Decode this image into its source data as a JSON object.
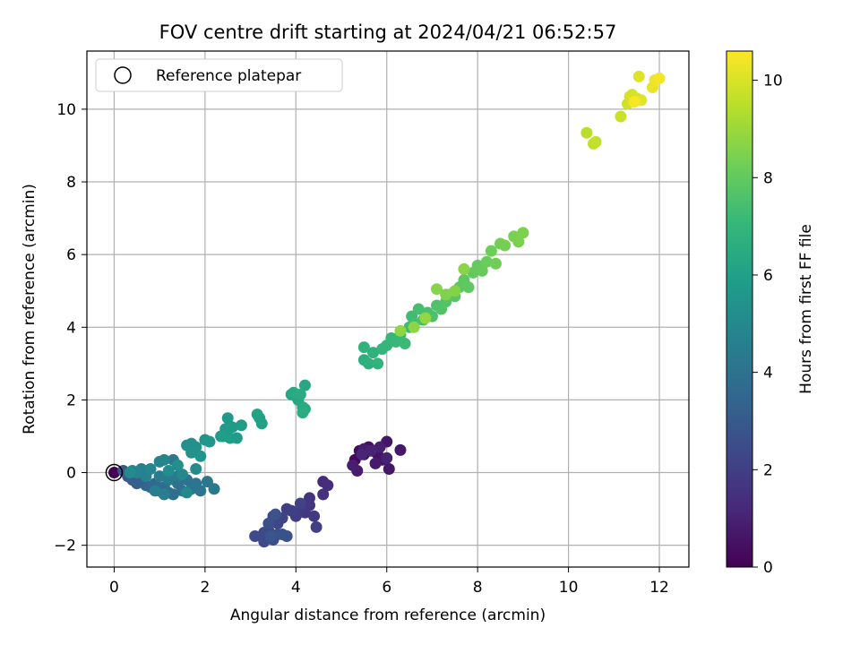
{
  "chart_data": {
    "type": "scatter",
    "title": "FOV centre drift starting at 2024/04/21 06:52:57",
    "xlabel": "Angular distance from reference (arcmin)",
    "ylabel": "Rotation from reference (arcmin)",
    "xlim": [
      -0.6,
      12.65
    ],
    "ylim": [
      -2.6,
      11.6
    ],
    "xticks": [
      0,
      2,
      4,
      6,
      8,
      10,
      12
    ],
    "yticks": [
      -2,
      0,
      2,
      4,
      6,
      8,
      10
    ],
    "grid": true,
    "legend": {
      "position": "top-left",
      "entries": [
        "Reference platepar"
      ]
    },
    "reference_point": {
      "x": 0,
      "y": 0,
      "marker": "open-circle"
    },
    "colorbar": {
      "label": "Hours from first FF file",
      "range": [
        0,
        10.6
      ],
      "ticks": [
        0,
        2,
        4,
        6,
        8,
        10
      ],
      "colormap": "viridis"
    },
    "points": [
      {
        "x": 0.0,
        "y": 0.0,
        "c": 0.0
      },
      {
        "x": 5.3,
        "y": 0.35,
        "c": 0.2
      },
      {
        "x": 5.4,
        "y": 0.6,
        "c": 0.3
      },
      {
        "x": 5.5,
        "y": 0.5,
        "c": 0.35
      },
      {
        "x": 5.6,
        "y": 0.7,
        "c": 0.4
      },
      {
        "x": 5.7,
        "y": 0.6,
        "c": 0.45
      },
      {
        "x": 5.8,
        "y": 0.5,
        "c": 0.5
      },
      {
        "x": 5.9,
        "y": 0.35,
        "c": 0.55
      },
      {
        "x": 6.0,
        "y": 0.85,
        "c": 0.6
      },
      {
        "x": 6.05,
        "y": 0.1,
        "c": 0.65
      },
      {
        "x": 6.3,
        "y": 0.62,
        "c": 0.7
      },
      {
        "x": 5.35,
        "y": 0.05,
        "c": 0.75
      },
      {
        "x": 5.75,
        "y": 0.25,
        "c": 0.8
      },
      {
        "x": 5.5,
        "y": 0.65,
        "c": 0.85
      },
      {
        "x": 5.25,
        "y": 0.2,
        "c": 0.9
      },
      {
        "x": 5.85,
        "y": 0.7,
        "c": 0.95
      },
      {
        "x": 6.0,
        "y": 0.4,
        "c": 1.0
      },
      {
        "x": 5.65,
        "y": 0.6,
        "c": 1.05
      },
      {
        "x": 5.45,
        "y": 0.5,
        "c": 1.1
      },
      {
        "x": 4.6,
        "y": -0.25,
        "c": 1.3
      },
      {
        "x": 4.7,
        "y": -0.35,
        "c": 1.4
      },
      {
        "x": 4.6,
        "y": -0.6,
        "c": 1.5
      },
      {
        "x": 4.3,
        "y": -0.7,
        "c": 1.6
      },
      {
        "x": 4.3,
        "y": -0.9,
        "c": 1.7
      },
      {
        "x": 4.2,
        "y": -1.1,
        "c": 1.75
      },
      {
        "x": 4.4,
        "y": -1.2,
        "c": 1.8
      },
      {
        "x": 4.1,
        "y": -1.0,
        "c": 1.85
      },
      {
        "x": 4.0,
        "y": -1.2,
        "c": 1.9
      },
      {
        "x": 3.8,
        "y": -1.0,
        "c": 1.95
      },
      {
        "x": 3.9,
        "y": -1.05,
        "c": 2.0
      },
      {
        "x": 4.45,
        "y": -1.5,
        "c": 2.05
      },
      {
        "x": 4.1,
        "y": -0.85,
        "c": 2.1
      },
      {
        "x": 3.7,
        "y": -1.25,
        "c": 2.15
      },
      {
        "x": 3.6,
        "y": -1.4,
        "c": 2.2
      },
      {
        "x": 3.5,
        "y": -1.2,
        "c": 2.25
      },
      {
        "x": 3.4,
        "y": -1.6,
        "c": 2.3
      },
      {
        "x": 3.3,
        "y": -1.65,
        "c": 2.35
      },
      {
        "x": 3.1,
        "y": -1.75,
        "c": 2.4
      },
      {
        "x": 3.3,
        "y": -1.9,
        "c": 2.45
      },
      {
        "x": 3.5,
        "y": -1.85,
        "c": 2.5
      },
      {
        "x": 3.6,
        "y": -1.7,
        "c": 2.55
      },
      {
        "x": 3.4,
        "y": -1.4,
        "c": 2.6
      },
      {
        "x": 3.7,
        "y": -1.7,
        "c": 2.65
      },
      {
        "x": 3.8,
        "y": -1.75,
        "c": 2.7
      },
      {
        "x": 3.55,
        "y": -1.15,
        "c": 2.75
      },
      {
        "x": 3.45,
        "y": -1.75,
        "c": 2.8
      },
      {
        "x": 0.2,
        "y": 0.05,
        "c": 2.9
      },
      {
        "x": 0.3,
        "y": -0.1,
        "c": 3.0
      },
      {
        "x": 0.4,
        "y": -0.2,
        "c": 3.1
      },
      {
        "x": 0.5,
        "y": -0.3,
        "c": 3.2
      },
      {
        "x": 0.6,
        "y": -0.2,
        "c": 3.3
      },
      {
        "x": 0.7,
        "y": -0.35,
        "c": 3.4
      },
      {
        "x": 0.8,
        "y": -0.4,
        "c": 3.5
      },
      {
        "x": 0.9,
        "y": -0.3,
        "c": 3.6
      },
      {
        "x": 1.0,
        "y": -0.5,
        "c": 3.7
      },
      {
        "x": 1.1,
        "y": -0.4,
        "c": 3.75
      },
      {
        "x": 1.2,
        "y": -0.55,
        "c": 3.8
      },
      {
        "x": 1.3,
        "y": -0.6,
        "c": 3.85
      },
      {
        "x": 1.4,
        "y": -0.3,
        "c": 3.9
      },
      {
        "x": 1.5,
        "y": -0.5,
        "c": 3.95
      },
      {
        "x": 1.6,
        "y": -0.2,
        "c": 4.0
      },
      {
        "x": 1.7,
        "y": -0.45,
        "c": 4.05
      },
      {
        "x": 1.8,
        "y": -0.3,
        "c": 4.1
      },
      {
        "x": 1.9,
        "y": -0.5,
        "c": 4.15
      },
      {
        "x": 2.05,
        "y": -0.25,
        "c": 4.2
      },
      {
        "x": 2.2,
        "y": -0.45,
        "c": 4.25
      },
      {
        "x": 1.3,
        "y": 0.35,
        "c": 4.3
      },
      {
        "x": 1.4,
        "y": -0.1,
        "c": 4.35
      },
      {
        "x": 1.2,
        "y": -0.2,
        "c": 4.4
      },
      {
        "x": 1.0,
        "y": -0.1,
        "c": 4.45
      },
      {
        "x": 0.9,
        "y": -0.5,
        "c": 4.5
      },
      {
        "x": 1.1,
        "y": -0.6,
        "c": 4.55
      },
      {
        "x": 0.6,
        "y": 0.1,
        "c": 4.6
      },
      {
        "x": 0.7,
        "y": -0.1,
        "c": 4.65
      },
      {
        "x": 0.5,
        "y": 0.0,
        "c": 4.7
      },
      {
        "x": 0.4,
        "y": 0.05,
        "c": 4.75
      },
      {
        "x": 1.0,
        "y": 0.3,
        "c": 4.8
      },
      {
        "x": 1.1,
        "y": 0.35,
        "c": 4.85
      },
      {
        "x": 0.8,
        "y": 0.1,
        "c": 4.9
      },
      {
        "x": 1.5,
        "y": -0.05,
        "c": 4.95
      },
      {
        "x": 1.6,
        "y": -0.55,
        "c": 5.0
      },
      {
        "x": 1.8,
        "y": 0.1,
        "c": 5.05
      },
      {
        "x": 0.35,
        "y": 0.0,
        "c": 5.1
      },
      {
        "x": 1.2,
        "y": 0.05,
        "c": 5.15
      },
      {
        "x": 1.4,
        "y": 0.2,
        "c": 5.2
      },
      {
        "x": 1.6,
        "y": 0.75,
        "c": 5.25
      },
      {
        "x": 1.7,
        "y": 0.8,
        "c": 5.3
      },
      {
        "x": 1.8,
        "y": 0.7,
        "c": 5.35
      },
      {
        "x": 1.7,
        "y": 0.55,
        "c": 5.4
      },
      {
        "x": 1.9,
        "y": 0.45,
        "c": 5.45
      },
      {
        "x": 2.0,
        "y": 0.9,
        "c": 5.5
      },
      {
        "x": 2.1,
        "y": 0.85,
        "c": 5.55
      },
      {
        "x": 2.35,
        "y": 1.0,
        "c": 5.6
      },
      {
        "x": 2.5,
        "y": 1.5,
        "c": 5.65
      },
      {
        "x": 2.45,
        "y": 1.2,
        "c": 5.7
      },
      {
        "x": 2.6,
        "y": 1.25,
        "c": 5.75
      },
      {
        "x": 2.7,
        "y": 0.95,
        "c": 5.8
      },
      {
        "x": 2.8,
        "y": 1.3,
        "c": 5.85
      },
      {
        "x": 2.55,
        "y": 0.95,
        "c": 5.9
      },
      {
        "x": 2.4,
        "y": 1.0,
        "c": 5.95
      },
      {
        "x": 3.2,
        "y": 1.5,
        "c": 6.0
      },
      {
        "x": 3.25,
        "y": 1.35,
        "c": 6.05
      },
      {
        "x": 3.15,
        "y": 1.6,
        "c": 6.1
      },
      {
        "x": 3.9,
        "y": 2.15,
        "c": 6.15
      },
      {
        "x": 4.0,
        "y": 2.1,
        "c": 6.2
      },
      {
        "x": 4.05,
        "y": 2.0,
        "c": 6.25
      },
      {
        "x": 4.2,
        "y": 2.4,
        "c": 6.3
      },
      {
        "x": 4.2,
        "y": 1.75,
        "c": 6.35
      },
      {
        "x": 4.15,
        "y": 1.8,
        "c": 6.4
      },
      {
        "x": 3.95,
        "y": 2.2,
        "c": 6.45
      },
      {
        "x": 4.1,
        "y": 2.15,
        "c": 6.5
      },
      {
        "x": 4.15,
        "y": 1.65,
        "c": 6.55
      },
      {
        "x": 5.5,
        "y": 3.1,
        "c": 6.7
      },
      {
        "x": 5.6,
        "y": 3.0,
        "c": 6.75
      },
      {
        "x": 5.7,
        "y": 3.3,
        "c": 6.8
      },
      {
        "x": 5.5,
        "y": 3.45,
        "c": 6.85
      },
      {
        "x": 5.8,
        "y": 3.0,
        "c": 6.9
      },
      {
        "x": 5.9,
        "y": 3.4,
        "c": 6.95
      },
      {
        "x": 6.0,
        "y": 3.5,
        "c": 7.0
      },
      {
        "x": 6.1,
        "y": 3.7,
        "c": 7.05
      },
      {
        "x": 6.2,
        "y": 3.6,
        "c": 7.1
      },
      {
        "x": 6.3,
        "y": 3.8,
        "c": 7.15
      },
      {
        "x": 6.4,
        "y": 3.55,
        "c": 7.2
      },
      {
        "x": 6.5,
        "y": 4.0,
        "c": 7.25
      },
      {
        "x": 6.55,
        "y": 4.3,
        "c": 7.3
      },
      {
        "x": 6.6,
        "y": 4.1,
        "c": 7.35
      },
      {
        "x": 6.7,
        "y": 4.5,
        "c": 7.4
      },
      {
        "x": 6.8,
        "y": 4.2,
        "c": 7.45
      },
      {
        "x": 6.9,
        "y": 4.4,
        "c": 7.5
      },
      {
        "x": 7.0,
        "y": 4.3,
        "c": 7.55
      },
      {
        "x": 7.1,
        "y": 4.6,
        "c": 7.6
      },
      {
        "x": 7.2,
        "y": 4.5,
        "c": 7.65
      },
      {
        "x": 7.3,
        "y": 4.7,
        "c": 7.7
      },
      {
        "x": 7.4,
        "y": 4.9,
        "c": 7.75
      },
      {
        "x": 7.5,
        "y": 4.85,
        "c": 7.8
      },
      {
        "x": 7.6,
        "y": 5.1,
        "c": 7.85
      },
      {
        "x": 7.7,
        "y": 5.3,
        "c": 7.9
      },
      {
        "x": 7.8,
        "y": 5.1,
        "c": 7.95
      },
      {
        "x": 7.9,
        "y": 5.5,
        "c": 8.0
      },
      {
        "x": 8.0,
        "y": 5.7,
        "c": 8.05
      },
      {
        "x": 8.1,
        "y": 5.55,
        "c": 8.1
      },
      {
        "x": 8.2,
        "y": 5.8,
        "c": 8.15
      },
      {
        "x": 8.3,
        "y": 6.1,
        "c": 8.2
      },
      {
        "x": 8.4,
        "y": 5.75,
        "c": 8.25
      },
      {
        "x": 8.5,
        "y": 6.3,
        "c": 8.3
      },
      {
        "x": 8.6,
        "y": 6.25,
        "c": 8.35
      },
      {
        "x": 8.8,
        "y": 6.5,
        "c": 8.4
      },
      {
        "x": 8.9,
        "y": 6.35,
        "c": 8.45
      },
      {
        "x": 9.0,
        "y": 6.6,
        "c": 8.5
      },
      {
        "x": 7.3,
        "y": 4.9,
        "c": 8.55
      },
      {
        "x": 7.5,
        "y": 5.0,
        "c": 8.6
      },
      {
        "x": 7.1,
        "y": 5.05,
        "c": 8.65
      },
      {
        "x": 7.7,
        "y": 5.6,
        "c": 8.7
      },
      {
        "x": 6.6,
        "y": 4.0,
        "c": 8.75
      },
      {
        "x": 6.3,
        "y": 3.9,
        "c": 8.8
      },
      {
        "x": 6.85,
        "y": 4.25,
        "c": 8.85
      },
      {
        "x": 10.4,
        "y": 9.35,
        "c": 9.5
      },
      {
        "x": 10.55,
        "y": 9.05,
        "c": 9.6
      },
      {
        "x": 10.6,
        "y": 9.1,
        "c": 9.65
      },
      {
        "x": 11.15,
        "y": 9.8,
        "c": 9.75
      },
      {
        "x": 11.3,
        "y": 10.15,
        "c": 9.85
      },
      {
        "x": 11.35,
        "y": 10.35,
        "c": 9.9
      },
      {
        "x": 11.4,
        "y": 10.4,
        "c": 9.95
      },
      {
        "x": 11.5,
        "y": 10.3,
        "c": 10.0
      },
      {
        "x": 11.55,
        "y": 10.9,
        "c": 10.1
      },
      {
        "x": 11.6,
        "y": 10.25,
        "c": 10.15
      },
      {
        "x": 11.85,
        "y": 10.6,
        "c": 10.25
      },
      {
        "x": 11.9,
        "y": 10.8,
        "c": 10.35
      },
      {
        "x": 12.0,
        "y": 10.85,
        "c": 10.45
      },
      {
        "x": 11.45,
        "y": 10.2,
        "c": 10.5
      }
    ]
  }
}
